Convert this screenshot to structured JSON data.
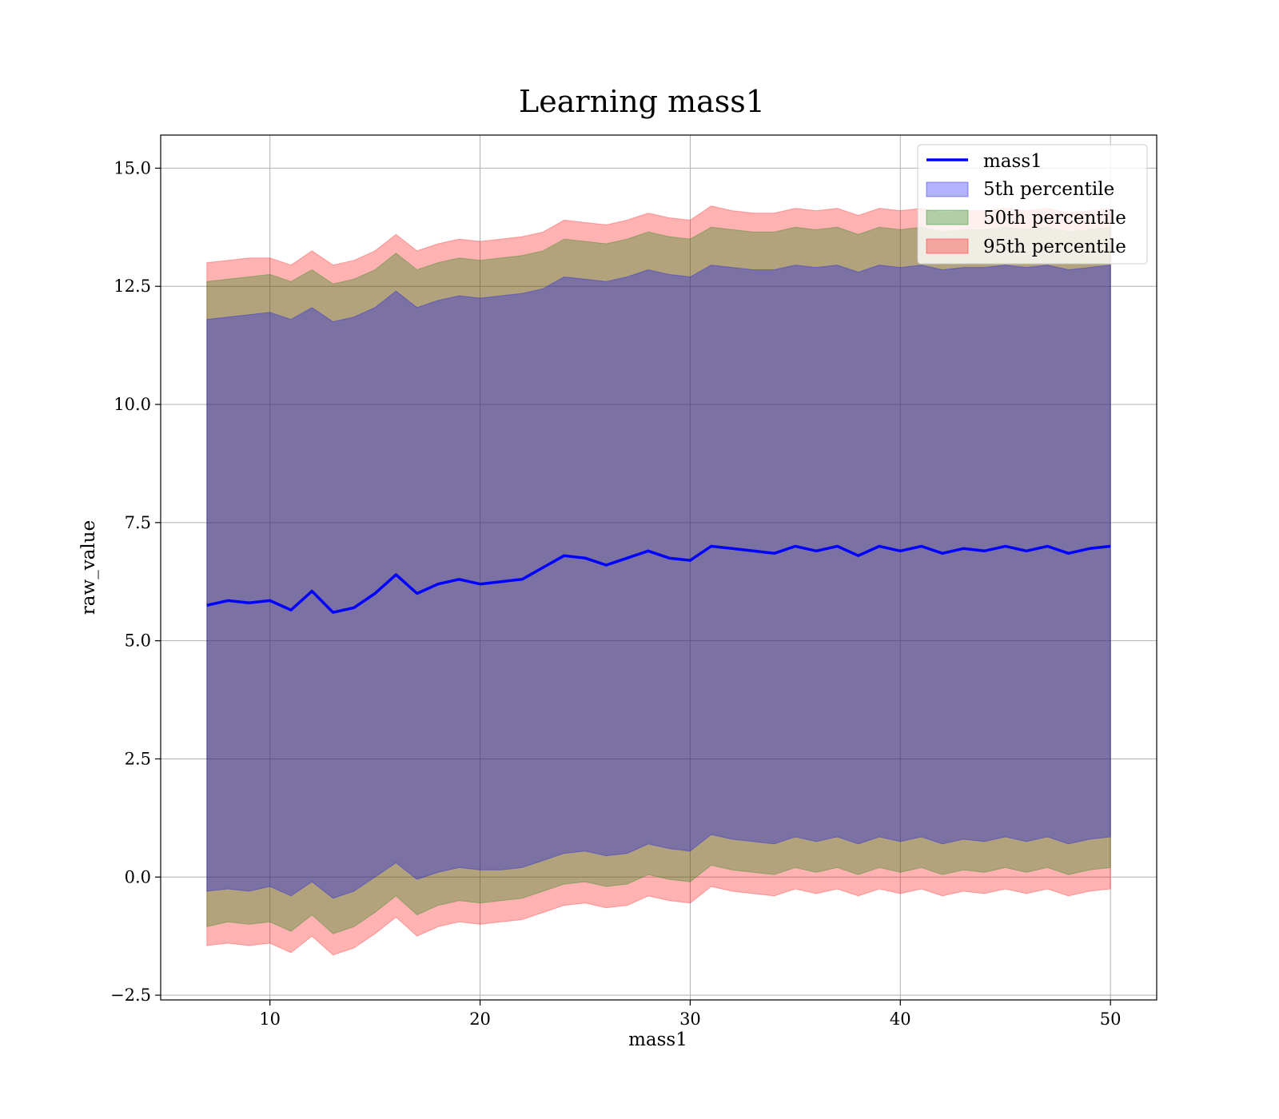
{
  "chart_data": {
    "type": "line",
    "title": "Learning mass1",
    "xlabel": "mass1",
    "ylabel": "raw_value",
    "xlim": [
      4.8,
      52.2
    ],
    "ylim": [
      -2.6,
      15.7
    ],
    "xticks": [
      10,
      20,
      30,
      40,
      50
    ],
    "yticks": [
      -2.5,
      0.0,
      2.5,
      5.0,
      7.5,
      10.0,
      12.5,
      15.0
    ],
    "xtick_labels": [
      "10",
      "20",
      "30",
      "40",
      "50"
    ],
    "ytick_labels": [
      "−2.5",
      "0.0",
      "2.5",
      "5.0",
      "7.5",
      "10.0",
      "12.5",
      "15.0"
    ],
    "grid": true,
    "legend_position": "top-right",
    "colors": {
      "line": "#0000ff",
      "band_5": "#0000ff",
      "band_50": "#008000",
      "band_95": "#ff0000"
    },
    "x": [
      7.0,
      8.0,
      9.0,
      10.0,
      11.0,
      12.0,
      13.0,
      14.0,
      15.0,
      16.0,
      17.0,
      18.0,
      19.0,
      20.0,
      21.0,
      22.0,
      23.0,
      24.0,
      25.0,
      26.0,
      27.0,
      28.0,
      29.0,
      30.0,
      31.0,
      32.0,
      33.0,
      34.0,
      35.0,
      36.0,
      37.0,
      38.0,
      39.0,
      40.0,
      41.0,
      42.0,
      43.0,
      44.0,
      45.0,
      46.0,
      47.0,
      48.0,
      49.0,
      50.0
    ],
    "series": [
      {
        "name": "mass1",
        "kind": "line",
        "values": [
          5.75,
          5.85,
          5.8,
          5.85,
          5.65,
          6.05,
          5.6,
          5.7,
          6.0,
          6.4,
          6.0,
          6.2,
          6.3,
          6.2,
          6.25,
          6.3,
          6.55,
          6.8,
          6.75,
          6.6,
          6.75,
          6.9,
          6.75,
          6.7,
          7.0,
          6.95,
          6.9,
          6.85,
          7.0,
          6.9,
          7.0,
          6.8,
          7.0,
          6.9,
          7.0,
          6.85,
          6.95,
          6.9,
          7.0,
          6.9,
          7.0,
          6.85,
          6.95,
          7.0
        ]
      },
      {
        "name": "5th percentile",
        "kind": "band",
        "lower": [
          -0.3,
          -0.25,
          -0.3,
          -0.2,
          -0.4,
          -0.1,
          -0.45,
          -0.3,
          0.0,
          0.3,
          -0.05,
          0.1,
          0.2,
          0.15,
          0.15,
          0.2,
          0.35,
          0.5,
          0.55,
          0.45,
          0.5,
          0.7,
          0.6,
          0.55,
          0.9,
          0.8,
          0.75,
          0.7,
          0.85,
          0.75,
          0.85,
          0.7,
          0.85,
          0.75,
          0.85,
          0.7,
          0.8,
          0.75,
          0.85,
          0.75,
          0.85,
          0.7,
          0.8,
          0.85
        ],
        "upper": [
          11.8,
          11.85,
          11.9,
          11.95,
          11.8,
          12.05,
          11.75,
          11.85,
          12.05,
          12.4,
          12.05,
          12.2,
          12.3,
          12.25,
          12.3,
          12.35,
          12.45,
          12.7,
          12.65,
          12.6,
          12.7,
          12.85,
          12.75,
          12.7,
          12.95,
          12.9,
          12.85,
          12.85,
          12.95,
          12.9,
          12.95,
          12.8,
          12.95,
          12.9,
          12.95,
          12.85,
          12.9,
          12.9,
          12.95,
          12.9,
          12.95,
          12.85,
          12.9,
          12.95
        ]
      },
      {
        "name": "50th percentile",
        "kind": "band",
        "lower": [
          -1.05,
          -0.95,
          -1.0,
          -0.95,
          -1.15,
          -0.8,
          -1.2,
          -1.05,
          -0.75,
          -0.4,
          -0.8,
          -0.6,
          -0.5,
          -0.55,
          -0.5,
          -0.45,
          -0.3,
          -0.15,
          -0.1,
          -0.2,
          -0.15,
          0.05,
          -0.05,
          -0.1,
          0.25,
          0.15,
          0.1,
          0.05,
          0.2,
          0.1,
          0.2,
          0.05,
          0.2,
          0.1,
          0.2,
          0.05,
          0.15,
          0.1,
          0.2,
          0.1,
          0.2,
          0.05,
          0.15,
          0.2
        ],
        "upper": [
          12.6,
          12.65,
          12.7,
          12.75,
          12.6,
          12.85,
          12.55,
          12.65,
          12.85,
          13.2,
          12.85,
          13.0,
          13.1,
          13.05,
          13.1,
          13.15,
          13.25,
          13.5,
          13.45,
          13.4,
          13.5,
          13.65,
          13.55,
          13.5,
          13.75,
          13.7,
          13.65,
          13.65,
          13.75,
          13.7,
          13.75,
          13.6,
          13.75,
          13.7,
          13.75,
          13.65,
          13.7,
          13.7,
          13.75,
          13.7,
          13.75,
          13.65,
          13.7,
          13.75
        ]
      },
      {
        "name": "95th percentile",
        "kind": "band",
        "lower": [
          -1.45,
          -1.4,
          -1.45,
          -1.4,
          -1.6,
          -1.25,
          -1.65,
          -1.5,
          -1.2,
          -0.85,
          -1.25,
          -1.05,
          -0.95,
          -1.0,
          -0.95,
          -0.9,
          -0.75,
          -0.6,
          -0.55,
          -0.65,
          -0.6,
          -0.4,
          -0.5,
          -0.55,
          -0.2,
          -0.3,
          -0.35,
          -0.4,
          -0.25,
          -0.35,
          -0.25,
          -0.4,
          -0.25,
          -0.35,
          -0.25,
          -0.4,
          -0.3,
          -0.35,
          -0.25,
          -0.35,
          -0.25,
          -0.4,
          -0.3,
          -0.25
        ],
        "upper": [
          13.0,
          13.05,
          13.1,
          13.1,
          12.95,
          13.25,
          12.95,
          13.05,
          13.25,
          13.6,
          13.25,
          13.4,
          13.5,
          13.45,
          13.5,
          13.55,
          13.65,
          13.9,
          13.85,
          13.8,
          13.9,
          14.05,
          13.95,
          13.9,
          14.2,
          14.1,
          14.05,
          14.05,
          14.15,
          14.1,
          14.15,
          14.0,
          14.15,
          14.1,
          14.15,
          14.05,
          14.1,
          14.1,
          14.15,
          14.1,
          14.15,
          14.05,
          14.1,
          14.15
        ]
      }
    ]
  }
}
